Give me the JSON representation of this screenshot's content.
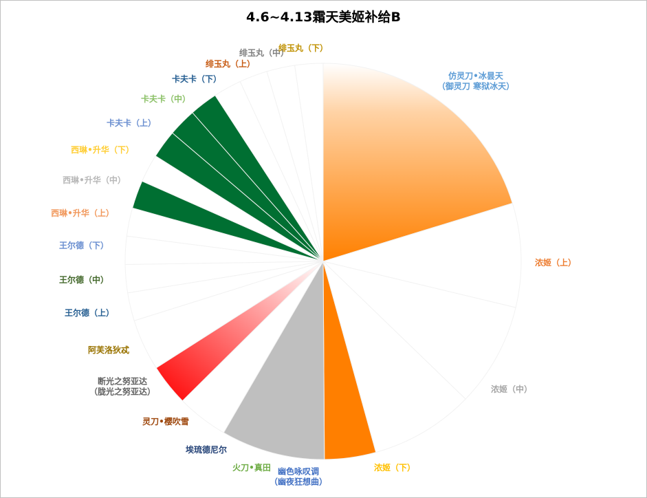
{
  "chart_data": {
    "type": "pie",
    "title": "4.6~4.13霜天美姬补给B",
    "legend": "none",
    "slices": [
      {
        "label": "仿灵刀•冰昙天\n（御灵刀 寒狱冰天）",
        "value": 20.3,
        "fill": "orange-gradient",
        "label_color": "#5b9bd5"
      },
      {
        "label": "浓姬（上）",
        "value": 8.5,
        "fill": "#ffffff",
        "label_color": "#ed7d31"
      },
      {
        "label": "浓姬（中）",
        "value": 8.5,
        "fill": "#ffffff",
        "label_color": "#a5a5a5"
      },
      {
        "label": "浓姬（下）",
        "value": 8.5,
        "fill": "#ffffff",
        "label_color": "#ffc000"
      },
      {
        "label": "幽色咏叹调\n（幽夜狂想曲）",
        "value": 4.2,
        "fill": "#ff7f00",
        "label_color": "#4472c4"
      },
      {
        "label": "火刀•真田",
        "value": 8.5,
        "fill": "#bfbfbf",
        "label_color": "#70ad47"
      },
      {
        "label": "埃琉德尼尔",
        "value": 4.2,
        "fill": "#ffffff",
        "label_color": "#264478"
      },
      {
        "label": "灵刀•樱吹雪",
        "value": 3.4,
        "fill": "red-gradient",
        "label_color": "#9e480e"
      },
      {
        "label": "断光之努亚达\n（胧光之努亚达）",
        "value": 4.2,
        "fill": "#ffffff",
        "label_color": "#636363"
      },
      {
        "label": "阿芙洛狄忒",
        "value": 2.3,
        "fill": "#ffffff",
        "label_color": "#997300"
      },
      {
        "label": "王尔德（上）",
        "value": 2.3,
        "fill": "#ffffff",
        "label_color": "#255e91"
      },
      {
        "label": "王尔德（中）",
        "value": 2.3,
        "fill": "#ffffff",
        "label_color": "#43682b"
      },
      {
        "label": "王尔德（下）",
        "value": 2.3,
        "fill": "#ffffff",
        "label_color": "#698ed0"
      },
      {
        "label": "西琳•升华（上）",
        "value": 2.3,
        "fill": "#006f32",
        "label_color": "#f1975a"
      },
      {
        "label": "西琳•升华（中）",
        "value": 2.3,
        "fill": "#ffffff",
        "label_color": "#b7b7b7"
      },
      {
        "label": "西琳•升华（下）",
        "value": 2.3,
        "fill": "#006f32",
        "label_color": "#ffcd33"
      },
      {
        "label": "卡夫卡（上）",
        "value": 2.3,
        "fill": "#006f32",
        "label_color": "#6b8fd0"
      },
      {
        "label": "卡夫卡（中）",
        "value": 2.3,
        "fill": "#006f32",
        "label_color": "#8cc168"
      },
      {
        "label": "卡夫卡（下）",
        "value": 2.3,
        "fill": "#ffffff",
        "label_color": "#255e91"
      },
      {
        "label": "绯玉丸（上）",
        "value": 2.3,
        "fill": "#ffffff",
        "label_color": "#c65911"
      },
      {
        "label": "绯玉丸（中）",
        "value": 2.3,
        "fill": "#ffffff",
        "label_color": "#7f7f7f"
      },
      {
        "label": "绯玉丸（下）",
        "value": 2.3,
        "fill": "#ffffff",
        "label_color": "#bf9000"
      }
    ]
  }
}
